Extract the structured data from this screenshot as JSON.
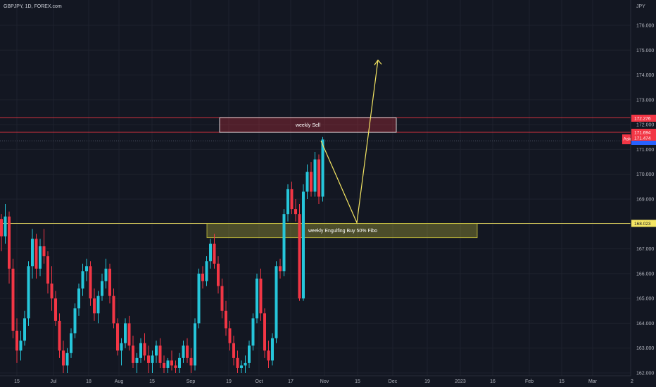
{
  "header": {
    "symbol": "GBPJPY, 1D, FOREX.com",
    "currency": "JPY"
  },
  "chart_data": {
    "type": "candlestick",
    "symbol": "GBPJPY",
    "interval": "1D",
    "ylim": [
      162.0,
      177.0
    ],
    "yticks": [
      "176.000",
      "175.000",
      "174.000",
      "173.000",
      "172.000",
      "171.000",
      "170.000",
      "169.000",
      "168.000",
      "167.000",
      "166.000",
      "165.000",
      "164.000",
      "163.000",
      "162.000"
    ],
    "xticks": [
      "15",
      "Jul",
      "18",
      "Aug",
      "15",
      "Sep",
      "19",
      "Oct",
      "17",
      "Nov",
      "15",
      "Dec",
      "19",
      "2023",
      "16",
      "Feb",
      "15",
      "Mar",
      "2"
    ],
    "up_color": "#26c6da",
    "down_color": "#f23645",
    "price_tags": [
      {
        "label": "172.276",
        "price": 172.276,
        "color": "#f23645"
      },
      {
        "label": "171.694",
        "price": 171.694,
        "color": "#f23645"
      },
      {
        "label": "171.474",
        "price": 171.474,
        "color": "#f23645"
      },
      {
        "label": "Ask",
        "price": 171.36,
        "color": "#f23645"
      },
      {
        "label": "168.023",
        "price": 168.023,
        "color": "#f5e663"
      }
    ],
    "zones": [
      {
        "label": "weekly Sell",
        "price_top": 172.28,
        "price_bottom": 171.69,
        "color": "#f23645"
      },
      {
        "label": "weekly Engulfing Buy 50% Fibo",
        "price_top": 168.02,
        "price_bottom": 167.45,
        "color": "#c8c23c"
      }
    ],
    "horizontal_lines": [
      {
        "price": 172.276,
        "color": "#f23645"
      },
      {
        "price": 171.694,
        "color": "#f23645"
      },
      {
        "price": 168.023,
        "color": "#f5e663"
      }
    ],
    "projection": [
      {
        "time": "Oct 31",
        "price": 171.35
      },
      {
        "time": "Nov 16",
        "price": 168.05
      },
      {
        "time": "Nov 24",
        "price": 174.6
      }
    ],
    "candles": [
      [
        168.2,
        168.4,
        166.9,
        167.5
      ],
      [
        167.5,
        168.8,
        167.2,
        168.3
      ],
      [
        168.3,
        168.5,
        165.6,
        166.2
      ],
      [
        166.2,
        166.6,
        163.4,
        163.7
      ],
      [
        163.7,
        164.2,
        162.4,
        162.9
      ],
      [
        162.9,
        163.7,
        162.5,
        163.3
      ],
      [
        163.3,
        164.5,
        163.1,
        164.2
      ],
      [
        164.2,
        166.5,
        163.9,
        166.3
      ],
      [
        166.3,
        167.8,
        165.8,
        167.4
      ],
      [
        167.4,
        167.6,
        165.8,
        166.2
      ],
      [
        166.2,
        167.4,
        165.9,
        167.1
      ],
      [
        167.1,
        167.8,
        166.4,
        166.7
      ],
      [
        166.7,
        166.9,
        165.2,
        165.6
      ],
      [
        165.6,
        166.3,
        164.5,
        165.0
      ],
      [
        165.0,
        165.3,
        163.9,
        164.1
      ],
      [
        164.1,
        164.4,
        162.6,
        162.9
      ],
      [
        162.9,
        163.3,
        162.0,
        162.3
      ],
      [
        162.3,
        163.0,
        162.0,
        162.8
      ],
      [
        162.8,
        163.8,
        162.6,
        163.6
      ],
      [
        163.6,
        164.8,
        163.4,
        164.6
      ],
      [
        164.6,
        165.6,
        164.3,
        165.4
      ],
      [
        165.4,
        166.4,
        165.1,
        166.1
      ],
      [
        166.1,
        166.6,
        165.7,
        166.3
      ],
      [
        166.3,
        166.5,
        164.7,
        165.0
      ],
      [
        165.0,
        165.4,
        164.1,
        164.4
      ],
      [
        164.4,
        165.3,
        164.0,
        165.1
      ],
      [
        165.1,
        166.0,
        164.9,
        165.7
      ],
      [
        165.7,
        166.6,
        165.4,
        166.2
      ],
      [
        166.2,
        166.4,
        164.8,
        165.1
      ],
      [
        165.1,
        165.4,
        163.8,
        164.0
      ],
      [
        164.0,
        164.2,
        162.7,
        162.9
      ],
      [
        162.9,
        163.4,
        162.3,
        163.2
      ],
      [
        163.2,
        164.2,
        163.0,
        164.0
      ],
      [
        164.0,
        164.3,
        162.9,
        163.1
      ],
      [
        163.1,
        163.5,
        162.2,
        162.4
      ],
      [
        162.4,
        162.8,
        162.0,
        162.6
      ],
      [
        162.6,
        163.4,
        162.4,
        163.2
      ],
      [
        163.2,
        163.6,
        162.5,
        162.7
      ],
      [
        162.7,
        163.1,
        162.0,
        162.4
      ],
      [
        162.4,
        162.9,
        162.0,
        162.7
      ],
      [
        162.7,
        163.3,
        162.4,
        163.1
      ],
      [
        163.1,
        163.4,
        162.2,
        162.4
      ],
      [
        162.4,
        162.7,
        162.0,
        162.2
      ],
      [
        162.2,
        162.6,
        162.0,
        162.5
      ],
      [
        162.5,
        162.9,
        162.1,
        162.3
      ],
      [
        162.3,
        162.5,
        162.0,
        162.2
      ],
      [
        162.2,
        162.8,
        162.0,
        162.6
      ],
      [
        162.6,
        163.3,
        162.4,
        163.1
      ],
      [
        163.1,
        163.4,
        162.4,
        162.6
      ],
      [
        162.6,
        163.0,
        162.0,
        162.3
      ],
      [
        162.3,
        164.2,
        162.1,
        164.0
      ],
      [
        164.0,
        166.2,
        163.8,
        166.0
      ],
      [
        166.0,
        166.3,
        165.4,
        165.7
      ],
      [
        165.7,
        166.7,
        165.5,
        166.5
      ],
      [
        166.5,
        167.4,
        166.2,
        167.2
      ],
      [
        167.2,
        167.6,
        166.2,
        166.4
      ],
      [
        166.4,
        166.7,
        165.2,
        165.5
      ],
      [
        165.5,
        165.8,
        164.2,
        164.5
      ],
      [
        164.5,
        164.9,
        163.5,
        163.8
      ],
      [
        163.8,
        164.1,
        162.9,
        163.2
      ],
      [
        163.2,
        163.5,
        162.3,
        162.6
      ],
      [
        162.6,
        162.9,
        162.0,
        162.2
      ],
      [
        162.2,
        162.5,
        162.0,
        162.3
      ],
      [
        162.3,
        162.7,
        162.0,
        162.4
      ],
      [
        162.4,
        163.3,
        162.2,
        163.1
      ],
      [
        163.1,
        164.4,
        162.9,
        164.2
      ],
      [
        164.2,
        166.0,
        164.0,
        165.8
      ],
      [
        165.8,
        166.2,
        164.1,
        164.4
      ],
      [
        164.4,
        164.6,
        162.6,
        162.9
      ],
      [
        162.9,
        163.3,
        162.2,
        162.5
      ],
      [
        162.5,
        163.6,
        162.3,
        163.4
      ],
      [
        163.4,
        166.5,
        163.2,
        166.3
      ],
      [
        166.3,
        166.6,
        165.8,
        166.1
      ],
      [
        166.1,
        168.6,
        165.9,
        168.4
      ],
      [
        168.4,
        169.6,
        168.1,
        169.4
      ],
      [
        169.4,
        169.7,
        168.4,
        168.6
      ],
      [
        168.6,
        169.0,
        168.1,
        168.4
      ],
      [
        168.4,
        168.8,
        164.9,
        165.0
      ],
      [
        165.0,
        169.6,
        164.9,
        169.3
      ],
      [
        169.3,
        170.4,
        169.0,
        170.1
      ],
      [
        170.1,
        170.5,
        169.1,
        169.3
      ],
      [
        169.3,
        170.9,
        169.1,
        170.6
      ],
      [
        170.6,
        170.8,
        168.8,
        169.1
      ],
      [
        169.1,
        171.5,
        168.9,
        171.4
      ]
    ]
  }
}
